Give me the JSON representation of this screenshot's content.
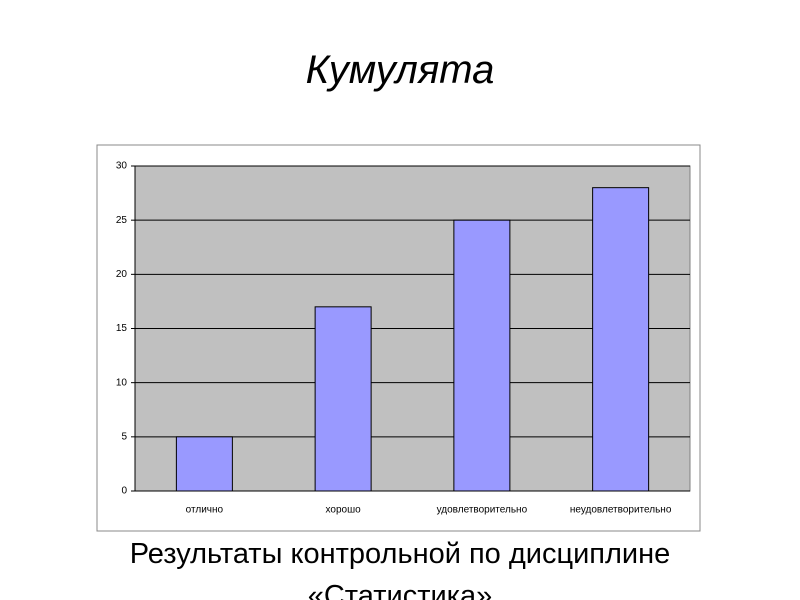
{
  "chart_data": {
    "type": "bar",
    "title": "Кумулята",
    "subtitle": "Результаты контрольной по дисциплине «Статистика»",
    "categories": [
      "отлично",
      "хорошо",
      "удовлетворительно",
      "неудовлетворительно"
    ],
    "values": [
      5,
      17,
      25,
      28
    ],
    "color": "#9999ff",
    "ylim": [
      0,
      30
    ],
    "yticks": [
      0,
      5,
      10,
      15,
      20,
      25,
      30
    ],
    "grid": true
  }
}
